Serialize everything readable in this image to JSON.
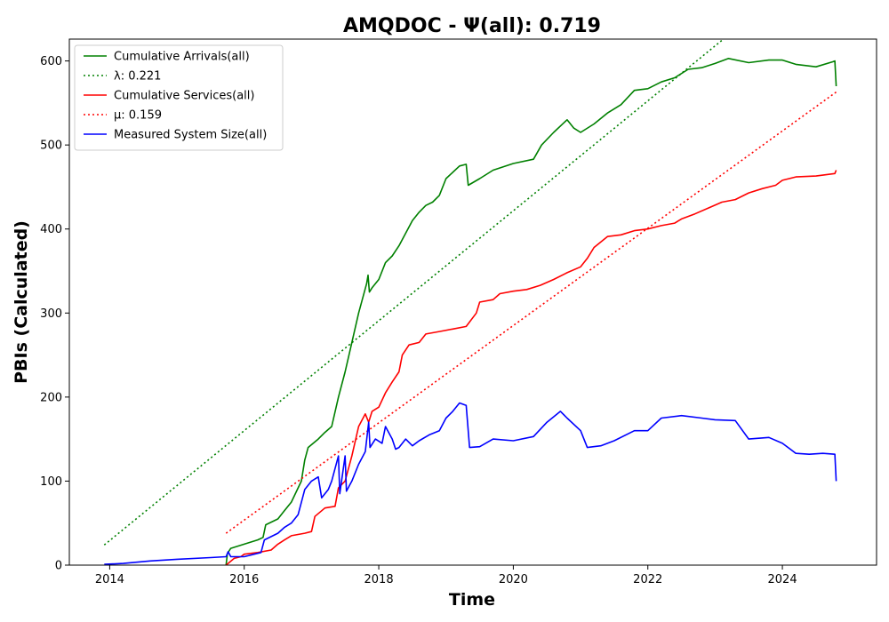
{
  "chart_data": {
    "type": "line",
    "title": "AMQDOC -  Ψ(all): 0.719",
    "xlabel": "Time",
    "ylabel": "PBIs (Calculated)",
    "xlim": [
      2013.4,
      2025.4
    ],
    "ylim": [
      0,
      626
    ],
    "x_ticks": [
      2014,
      2016,
      2018,
      2020,
      2022,
      2024
    ],
    "y_ticks": [
      0,
      100,
      200,
      300,
      400,
      500,
      600
    ],
    "grid": false,
    "legend_position": "top-left",
    "series": [
      {
        "name": "Cumulative Arrivals(all)",
        "color": "#008000",
        "style": "solid",
        "points": [
          [
            2015.73,
            0
          ],
          [
            2015.75,
            14
          ],
          [
            2015.8,
            20
          ],
          [
            2016.0,
            25
          ],
          [
            2016.2,
            30
          ],
          [
            2016.28,
            33
          ],
          [
            2016.32,
            48
          ],
          [
            2016.5,
            55
          ],
          [
            2016.6,
            65
          ],
          [
            2016.7,
            75
          ],
          [
            2016.85,
            100
          ],
          [
            2016.9,
            125
          ],
          [
            2016.95,
            140
          ],
          [
            2017.1,
            150
          ],
          [
            2017.2,
            158
          ],
          [
            2017.3,
            165
          ],
          [
            2017.4,
            200
          ],
          [
            2017.5,
            230
          ],
          [
            2017.6,
            265
          ],
          [
            2017.7,
            300
          ],
          [
            2017.82,
            335
          ],
          [
            2017.84,
            345
          ],
          [
            2017.86,
            325
          ],
          [
            2017.9,
            330
          ],
          [
            2018.0,
            340
          ],
          [
            2018.1,
            360
          ],
          [
            2018.2,
            368
          ],
          [
            2018.3,
            380
          ],
          [
            2018.4,
            395
          ],
          [
            2018.5,
            410
          ],
          [
            2018.6,
            420
          ],
          [
            2018.7,
            428
          ],
          [
            2018.8,
            432
          ],
          [
            2018.9,
            440
          ],
          [
            2019.0,
            460
          ],
          [
            2019.2,
            475
          ],
          [
            2019.3,
            477
          ],
          [
            2019.33,
            452
          ],
          [
            2019.5,
            460
          ],
          [
            2019.7,
            470
          ],
          [
            2020.0,
            478
          ],
          [
            2020.3,
            483
          ],
          [
            2020.42,
            500
          ],
          [
            2020.6,
            515
          ],
          [
            2020.8,
            530
          ],
          [
            2020.9,
            520
          ],
          [
            2021.0,
            515
          ],
          [
            2021.2,
            525
          ],
          [
            2021.4,
            538
          ],
          [
            2021.6,
            548
          ],
          [
            2021.8,
            565
          ],
          [
            2022.0,
            567
          ],
          [
            2022.2,
            575
          ],
          [
            2022.4,
            580
          ],
          [
            2022.6,
            590
          ],
          [
            2022.8,
            592
          ],
          [
            2023.0,
            597
          ],
          [
            2023.2,
            603
          ],
          [
            2023.5,
            598
          ],
          [
            2023.8,
            601
          ],
          [
            2024.0,
            601
          ],
          [
            2024.2,
            596
          ],
          [
            2024.5,
            593
          ],
          [
            2024.75,
            599
          ],
          [
            2024.78,
            600
          ],
          [
            2024.8,
            570
          ]
        ]
      },
      {
        "name": "λ: 0.221",
        "color": "#008000",
        "style": "dotted",
        "points": [
          [
            2013.92,
            24
          ],
          [
            2023.2,
            631
          ]
        ]
      },
      {
        "name": "Cumulative Services(all)",
        "color": "#ff0000",
        "style": "solid",
        "points": [
          [
            2015.73,
            0
          ],
          [
            2015.85,
            8
          ],
          [
            2015.95,
            10
          ],
          [
            2016.0,
            13
          ],
          [
            2016.2,
            15
          ],
          [
            2016.4,
            18
          ],
          [
            2016.5,
            25
          ],
          [
            2016.6,
            30
          ],
          [
            2016.7,
            35
          ],
          [
            2016.9,
            38
          ],
          [
            2017.0,
            40
          ],
          [
            2017.05,
            58
          ],
          [
            2017.2,
            68
          ],
          [
            2017.35,
            70
          ],
          [
            2017.4,
            92
          ],
          [
            2017.5,
            100
          ],
          [
            2017.6,
            130
          ],
          [
            2017.7,
            165
          ],
          [
            2017.8,
            180
          ],
          [
            2017.85,
            170
          ],
          [
            2017.9,
            183
          ],
          [
            2018.0,
            188
          ],
          [
            2018.1,
            205
          ],
          [
            2018.2,
            218
          ],
          [
            2018.3,
            230
          ],
          [
            2018.35,
            250
          ],
          [
            2018.45,
            262
          ],
          [
            2018.6,
            265
          ],
          [
            2018.7,
            275
          ],
          [
            2018.9,
            278
          ],
          [
            2019.1,
            281
          ],
          [
            2019.3,
            284
          ],
          [
            2019.45,
            300
          ],
          [
            2019.5,
            313
          ],
          [
            2019.7,
            316
          ],
          [
            2019.8,
            323
          ],
          [
            2020.0,
            326
          ],
          [
            2020.2,
            328
          ],
          [
            2020.4,
            333
          ],
          [
            2020.6,
            340
          ],
          [
            2020.8,
            348
          ],
          [
            2021.0,
            355
          ],
          [
            2021.1,
            365
          ],
          [
            2021.2,
            378
          ],
          [
            2021.4,
            391
          ],
          [
            2021.6,
            393
          ],
          [
            2021.8,
            398
          ],
          [
            2022.0,
            400
          ],
          [
            2022.2,
            404
          ],
          [
            2022.4,
            407
          ],
          [
            2022.5,
            412
          ],
          [
            2022.7,
            418
          ],
          [
            2022.9,
            425
          ],
          [
            2023.1,
            432
          ],
          [
            2023.3,
            435
          ],
          [
            2023.5,
            443
          ],
          [
            2023.7,
            448
          ],
          [
            2023.9,
            452
          ],
          [
            2024.0,
            458
          ],
          [
            2024.2,
            462
          ],
          [
            2024.5,
            463
          ],
          [
            2024.78,
            466
          ],
          [
            2024.8,
            470
          ]
        ]
      },
      {
        "name": "μ: 0.159",
        "color": "#ff0000",
        "style": "dotted",
        "points": [
          [
            2015.73,
            38
          ],
          [
            2024.8,
            563
          ]
        ]
      },
      {
        "name": "Measured System Size(all)",
        "color": "#0000ff",
        "style": "solid",
        "points": [
          [
            2013.92,
            1
          ],
          [
            2014.2,
            2
          ],
          [
            2014.6,
            5
          ],
          [
            2015.0,
            7
          ],
          [
            2015.5,
            9
          ],
          [
            2015.73,
            10
          ],
          [
            2015.76,
            16
          ],
          [
            2015.8,
            10
          ],
          [
            2016.0,
            10
          ],
          [
            2016.25,
            15
          ],
          [
            2016.3,
            30
          ],
          [
            2016.5,
            38
          ],
          [
            2016.6,
            45
          ],
          [
            2016.7,
            50
          ],
          [
            2016.8,
            60
          ],
          [
            2016.9,
            90
          ],
          [
            2017.0,
            100
          ],
          [
            2017.1,
            105
          ],
          [
            2017.15,
            80
          ],
          [
            2017.25,
            90
          ],
          [
            2017.3,
            100
          ],
          [
            2017.4,
            130
          ],
          [
            2017.42,
            85
          ],
          [
            2017.5,
            130
          ],
          [
            2017.52,
            88
          ],
          [
            2017.6,
            100
          ],
          [
            2017.7,
            120
          ],
          [
            2017.8,
            135
          ],
          [
            2017.85,
            170
          ],
          [
            2017.87,
            140
          ],
          [
            2017.95,
            150
          ],
          [
            2018.05,
            145
          ],
          [
            2018.1,
            165
          ],
          [
            2018.2,
            150
          ],
          [
            2018.25,
            138
          ],
          [
            2018.3,
            140
          ],
          [
            2018.4,
            150
          ],
          [
            2018.5,
            142
          ],
          [
            2018.6,
            148
          ],
          [
            2018.75,
            155
          ],
          [
            2018.9,
            160
          ],
          [
            2019.0,
            175
          ],
          [
            2019.1,
            183
          ],
          [
            2019.2,
            193
          ],
          [
            2019.3,
            190
          ],
          [
            2019.35,
            140
          ],
          [
            2019.5,
            141
          ],
          [
            2019.7,
            150
          ],
          [
            2020.0,
            148
          ],
          [
            2020.3,
            153
          ],
          [
            2020.5,
            170
          ],
          [
            2020.7,
            183
          ],
          [
            2020.8,
            175
          ],
          [
            2021.0,
            160
          ],
          [
            2021.1,
            140
          ],
          [
            2021.3,
            142
          ],
          [
            2021.5,
            148
          ],
          [
            2021.8,
            160
          ],
          [
            2022.0,
            160
          ],
          [
            2022.2,
            175
          ],
          [
            2022.5,
            178
          ],
          [
            2022.8,
            175
          ],
          [
            2023.0,
            173
          ],
          [
            2023.3,
            172
          ],
          [
            2023.5,
            150
          ],
          [
            2023.8,
            152
          ],
          [
            2024.0,
            145
          ],
          [
            2024.2,
            133
          ],
          [
            2024.4,
            132
          ],
          [
            2024.6,
            133
          ],
          [
            2024.78,
            132
          ],
          [
            2024.8,
            100
          ]
        ]
      }
    ]
  }
}
